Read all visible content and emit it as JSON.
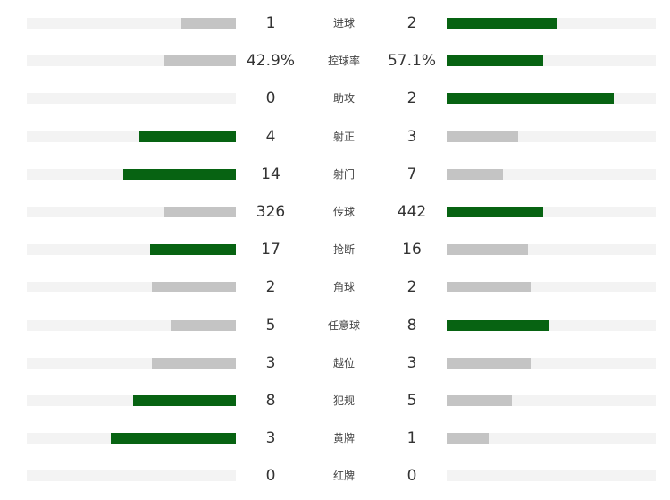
{
  "colors": {
    "winner_bar": "#076312",
    "loser_bar": "#c4c4c4",
    "track": "#f3f3f3"
  },
  "stats": [
    {
      "label": "进球",
      "home": "1",
      "away": "2",
      "home_fill": 0.26,
      "away_fill": 0.53,
      "leader": "away"
    },
    {
      "label": "控球率",
      "home": "42.9%",
      "away": "57.1%",
      "home_fill": 0.34,
      "away_fill": 0.46,
      "leader": "away"
    },
    {
      "label": "助攻",
      "home": "0",
      "away": "2",
      "home_fill": 0.0,
      "away_fill": 0.8,
      "leader": "away"
    },
    {
      "label": "射正",
      "home": "4",
      "away": "3",
      "home_fill": 0.46,
      "away_fill": 0.34,
      "leader": "home"
    },
    {
      "label": "射门",
      "home": "14",
      "away": "7",
      "home_fill": 0.54,
      "away_fill": 0.27,
      "leader": "home"
    },
    {
      "label": "传球",
      "home": "326",
      "away": "442",
      "home_fill": 0.34,
      "away_fill": 0.46,
      "leader": "away"
    },
    {
      "label": "抢断",
      "home": "17",
      "away": "16",
      "home_fill": 0.41,
      "away_fill": 0.39,
      "leader": "home"
    },
    {
      "label": "角球",
      "home": "2",
      "away": "2",
      "home_fill": 0.4,
      "away_fill": 0.4,
      "leader": "none"
    },
    {
      "label": "任意球",
      "home": "5",
      "away": "8",
      "home_fill": 0.31,
      "away_fill": 0.49,
      "leader": "away"
    },
    {
      "label": "越位",
      "home": "3",
      "away": "3",
      "home_fill": 0.4,
      "away_fill": 0.4,
      "leader": "none"
    },
    {
      "label": "犯规",
      "home": "8",
      "away": "5",
      "home_fill": 0.49,
      "away_fill": 0.31,
      "leader": "home"
    },
    {
      "label": "黄牌",
      "home": "3",
      "away": "1",
      "home_fill": 0.6,
      "away_fill": 0.2,
      "leader": "home"
    },
    {
      "label": "红牌",
      "home": "0",
      "away": "0",
      "home_fill": 0.0,
      "away_fill": 0.0,
      "leader": "none"
    }
  ]
}
